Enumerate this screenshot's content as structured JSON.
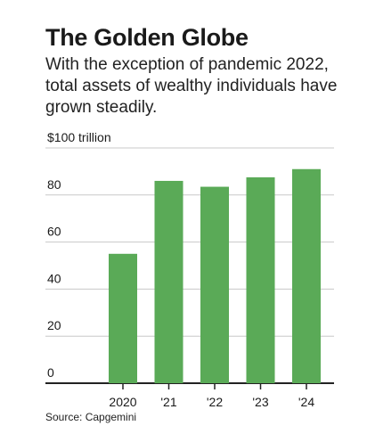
{
  "title": "The Golden Globe",
  "subtitle": "With the exception of pandemic 2022, total assets of wealthy individuals have grown steadily.",
  "source": "Source: Capgemini",
  "colors": {
    "bar": "#5aaa57",
    "grid": "#c8c8c8",
    "axis": "#222222",
    "text": "#1a1a1a"
  },
  "chart_data": {
    "type": "bar",
    "categories": [
      "2020",
      "'21",
      "'22",
      "'23",
      "'24"
    ],
    "values": [
      55,
      86,
      83.5,
      87.5,
      91
    ],
    "ylim": [
      0,
      100
    ],
    "yticks": [
      0,
      20,
      40,
      60,
      80,
      100
    ],
    "ytick_labels": [
      "0",
      "20",
      "40",
      "60",
      "80",
      "$100 trillion"
    ],
    "grid": true,
    "legend": "none"
  }
}
